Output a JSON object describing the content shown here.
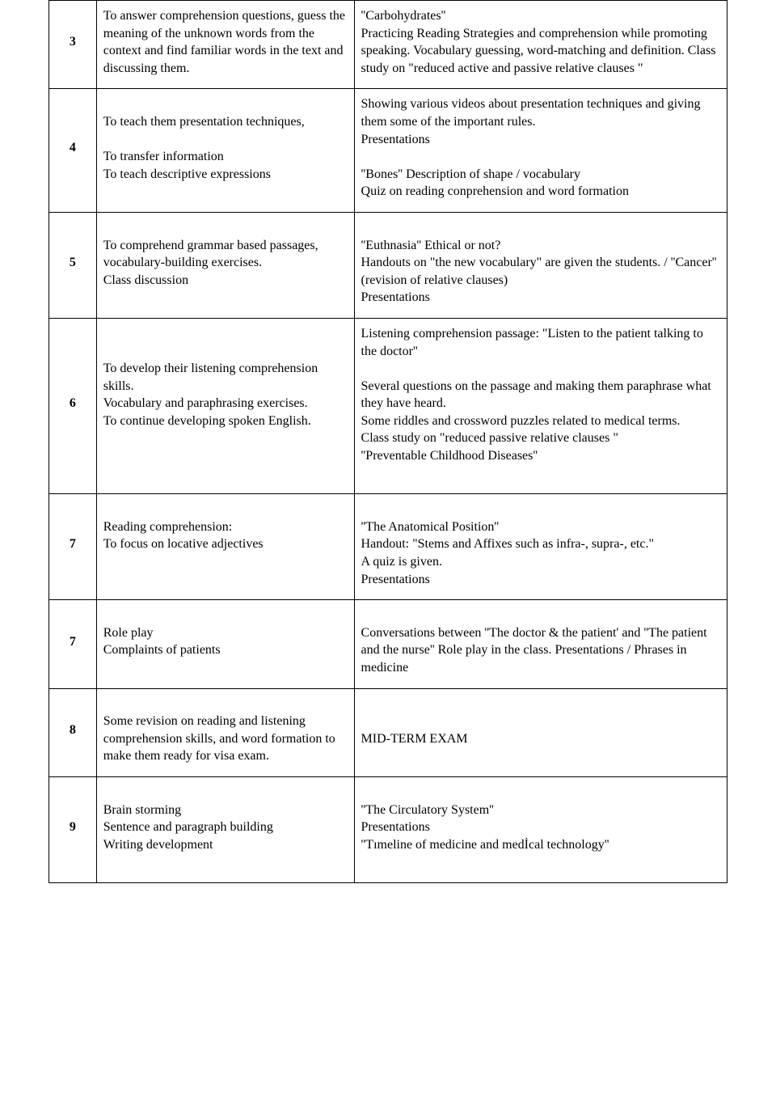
{
  "rows": [
    {
      "num": "3",
      "col2": "To answer comprehension questions, guess the meaning of the unknown words from the context and find familiar words in the text and discussing them.",
      "col3": "''Carbohydrates''\nPracticing Reading Strategies and comprehension while promoting speaking. Vocabulary guessing, word-matching and definition. Class study on \"reduced active and passive relative clauses \""
    },
    {
      "num": "4",
      "col2": "\nTo teach them presentation techniques,\n\nTo transfer information\nTo teach descriptive expressions",
      "col3": "Showing various videos about presentation techniques and giving them some of the important rules.\nPresentations\n\n''Bones'' Description of shape / vocabulary\n Quiz on  reading conprehension and word formation\n "
    },
    {
      "num": "5",
      "col2": "\nTo comprehend grammar based passages, vocabulary-building exercises.\nClass discussion",
      "col3": "\n ''Euthnasia'' Ethical or not?\nHandouts on \"the new vocabulary\" are given the students. / ''Cancer'' (revision of relative clauses)\nPresentations"
    },
    {
      "num": "6",
      "col2": "\n\nTo develop their listening comprehension skills.\nVocabulary and paraphrasing exercises.\nTo continue developing spoken English.",
      "col3": "Listening comprehension passage: \"Listen to the patient talking to the doctor''\n\nSeveral questions on the passage and making them paraphrase what they have heard.\nSome riddles and crossword puzzles related to medical terms.\nClass study on \"reduced passive relative clauses \"\n''Preventable Childhood  Diseases''\n\n "
    },
    {
      "num": "7",
      "col2": "\nReading comprehension:\nTo focus on locative adjectives",
      "col3": "\n''The Anatomical Position''\nHandout: \"Stems and Affixes such as infra-, supra-, etc.\"\nA quiz is given.\nPresentations\n "
    },
    {
      "num": "7",
      "col2": "\nRole play\nComplaints of patients",
      "col3": "\nConversations between ''The doctor & the patient' and ''The patient and the nurse''   Role play in the class. Presentations / Phrases in medicine\n "
    },
    {
      "num": "8",
      "col2": "\nSome revision on reading and listening comprehension skills, and word formation to make them ready for visa exam.",
      "col3": "\n\nMID-TERM EXAM\n\n "
    },
    {
      "num": "9",
      "col2": "\nBrain storming\nSentence and paragraph building\nWriting development",
      "col3": "\n''The Circulatory System''\nPresentations\n''Tımeline of medicine and medİcal technology''\n\n "
    }
  ],
  "style": {
    "font_family": "Times New Roman",
    "font_size_pt": 12,
    "border_color": "#000000",
    "background_color": "#ffffff",
    "text_color": "#000000",
    "col_widths_pct": [
      7,
      38,
      55
    ]
  }
}
